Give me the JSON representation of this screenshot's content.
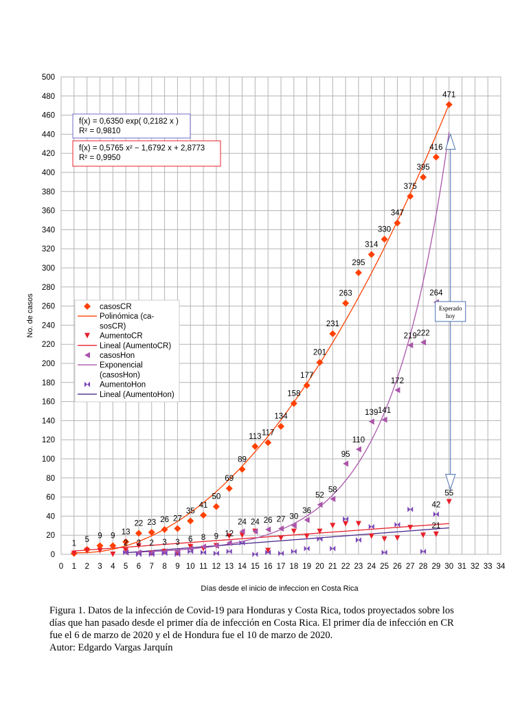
{
  "chart_data": {
    "type": "scatter",
    "xlabel": "Días desde el inicio de infeccion en Costa Rica",
    "ylabel": "No. de casos",
    "xlim": [
      0,
      34
    ],
    "ylim": [
      0,
      500
    ],
    "x_ticks": [
      0,
      1,
      2,
      3,
      4,
      5,
      6,
      7,
      8,
      9,
      10,
      11,
      12,
      13,
      14,
      15,
      16,
      17,
      18,
      19,
      20,
      21,
      22,
      23,
      24,
      25,
      26,
      27,
      28,
      29,
      30,
      31,
      32,
      33,
      34
    ],
    "y_ticks": [
      0,
      20,
      40,
      60,
      80,
      100,
      120,
      140,
      160,
      180,
      200,
      220,
      240,
      260,
      280,
      300,
      320,
      340,
      360,
      380,
      400,
      420,
      440,
      460,
      480,
      500
    ],
    "grid": true,
    "legend_position": "left-middle",
    "series": [
      {
        "name": "casosCR",
        "marker": "diamond",
        "color": "#ff4000",
        "x": [
          1,
          2,
          3,
          4,
          5,
          6,
          7,
          8,
          9,
          10,
          11,
          12,
          13,
          14,
          15,
          16,
          17,
          18,
          19,
          20,
          21,
          22,
          23,
          24,
          25,
          26,
          27,
          28,
          29,
          30
        ],
        "values": [
          1,
          5,
          9,
          9,
          13,
          22,
          23,
          26,
          27,
          35,
          41,
          50,
          69,
          89,
          113,
          117,
          134,
          158,
          177,
          201,
          231,
          263,
          295,
          314,
          330,
          347,
          375,
          395,
          416,
          471
        ],
        "labels": [
          "1",
          "5",
          "9",
          "9",
          "13",
          "22",
          "23",
          "26",
          "27",
          "35",
          "41",
          "50",
          "69",
          "89",
          "113",
          "117",
          "134",
          "158",
          "177",
          "201",
          "231",
          "263",
          "295",
          "314",
          "330",
          "347",
          "375",
          "395",
          "416",
          "471"
        ]
      },
      {
        "name": "AumentoCR",
        "marker": "triangle-down",
        "color": "#e8202a",
        "x": [
          1,
          2,
          3,
          4,
          5,
          6,
          7,
          8,
          9,
          10,
          11,
          12,
          13,
          14,
          15,
          16,
          17,
          18,
          19,
          20,
          21,
          22,
          23,
          24,
          25,
          26,
          27,
          28,
          29,
          30
        ],
        "values": [
          1,
          4,
          4,
          0,
          4,
          9,
          1,
          3,
          1,
          8,
          6,
          9,
          19,
          20,
          24,
          4,
          17,
          24,
          19,
          24,
          30,
          32,
          32,
          19,
          16,
          17,
          28,
          20,
          21,
          55
        ],
        "labels": [
          "",
          "",
          "",
          "",
          "",
          "",
          "",
          "",
          "",
          "",
          "",
          "",
          "",
          "",
          "",
          "",
          "",
          "",
          "",
          "",
          "",
          "",
          "",
          "",
          "",
          "",
          "",
          "",
          "21",
          "55"
        ]
      },
      {
        "name": "casosHon",
        "marker": "triangle-left",
        "color": "#aa55aa",
        "x": [
          5,
          6,
          7,
          8,
          9,
          10,
          11,
          12,
          13,
          14,
          15,
          16,
          17,
          18,
          19,
          20,
          21,
          22,
          23,
          24,
          25,
          26,
          27,
          28,
          29
        ],
        "values": [
          2,
          2,
          2,
          3,
          3,
          6,
          8,
          9,
          12,
          24,
          24,
          26,
          27,
          30,
          36,
          52,
          58,
          95,
          110,
          139,
          141,
          172,
          219,
          222,
          264
        ],
        "labels": [
          "2",
          "2",
          "2",
          "3",
          "3",
          "6",
          "8",
          "9",
          "12",
          "24",
          "24",
          "26",
          "27",
          "30",
          "36",
          "52",
          "58",
          "95",
          "110",
          "139",
          "141",
          "172",
          "219",
          "222",
          "264"
        ]
      },
      {
        "name": "AumentoHon",
        "marker": "bowtie",
        "color": "#7a45b8",
        "x": [
          5,
          6,
          7,
          8,
          9,
          10,
          11,
          12,
          13,
          14,
          15,
          16,
          17,
          18,
          19,
          20,
          21,
          22,
          23,
          24,
          25,
          26,
          27,
          28,
          29
        ],
        "values": [
          2,
          0,
          0,
          1,
          0,
          3,
          2,
          1,
          3,
          12,
          0,
          2,
          1,
          3,
          6,
          16,
          6,
          37,
          15,
          29,
          2,
          31,
          47,
          3,
          42
        ],
        "labels": [
          "",
          "",
          "",
          "",
          "",
          "",
          "",
          "",
          "",
          "",
          "",
          "",
          "",
          "",
          "",
          "",
          "",
          "",
          "",
          "",
          "",
          "",
          "",
          "",
          "42"
        ]
      }
    ],
    "trendlines": [
      {
        "name": "Polinómica (casosCR)",
        "type": "polynomial",
        "color": "#ff4000",
        "coefficients": [
          0.5765,
          -1.6792,
          2.8773
        ],
        "x_range": [
          1,
          30
        ]
      },
      {
        "name": "Lineal (AumentoCR)",
        "type": "linear",
        "color": "#e8202a",
        "slope": 0.99,
        "intercept": 2.5,
        "x_range": [
          1,
          30
        ]
      },
      {
        "name": "Exponencial (casosHon)",
        "type": "exponential",
        "color": "#aa55aa",
        "a": 0.635,
        "b": 0.2182,
        "x_range": [
          5,
          30
        ]
      },
      {
        "name": "Lineal (AumentoHon)",
        "type": "linear",
        "color": "#4b2a8c",
        "slope": 1.04,
        "intercept": -3.5,
        "x_range": [
          5,
          30
        ]
      }
    ],
    "equations": [
      {
        "line1": "f(x) = 0,6350 exp( 0,2182 x )",
        "line2": "R² = 0,9810",
        "color": "#7068c8"
      },
      {
        "line1": "f(x) = 0,5765 x² − 1,6792 x + 2,8773",
        "line2": "R² = 0,9950",
        "color": "#e8202a"
      }
    ],
    "legend": [
      {
        "label_lines": [
          "casosCR"
        ],
        "kind": "marker",
        "marker": "diamond",
        "color": "#ff4000"
      },
      {
        "label_lines": [
          "Polinómica (ca-",
          "sosCR)"
        ],
        "kind": "line",
        "color": "#ff4000"
      },
      {
        "label_lines": [
          "AumentoCR"
        ],
        "kind": "marker",
        "marker": "triangle-down",
        "color": "#e8202a"
      },
      {
        "label_lines": [
          "Lineal (AumentoCR)"
        ],
        "kind": "line",
        "color": "#e8202a"
      },
      {
        "label_lines": [
          "casosHon"
        ],
        "kind": "marker",
        "marker": "triangle-left",
        "color": "#aa55aa"
      },
      {
        "label_lines": [
          "Exponencial",
          "(casosHon)"
        ],
        "kind": "line",
        "color": "#aa55aa"
      },
      {
        "label_lines": [
          "AumentoHon"
        ],
        "kind": "marker",
        "marker": "bowtie",
        "color": "#7a45b8"
      },
      {
        "label_lines": [
          "Lineal (AumentoHon)"
        ],
        "kind": "line",
        "color": "#4b2a8c"
      }
    ],
    "annotation": {
      "text_lines": [
        "Esperado",
        "hoy"
      ],
      "x": 30,
      "y_top": 440,
      "y_bottom": 68,
      "color": "#4a6fb0"
    }
  },
  "caption": {
    "lines": [
      "Figura 1. Datos de la infección de Covid-19 para Honduras y Costa Rica, todos proyectados sobre los",
      "días que han pasado desde el primer día de infección en Costa Rica. El primer día de infección en CR",
      "fue el 6 de marzo de 2020 y el de Hondura fue el 10 de marzo de 2020.",
      "Autor: Edgardo Vargas Jarquín"
    ]
  }
}
